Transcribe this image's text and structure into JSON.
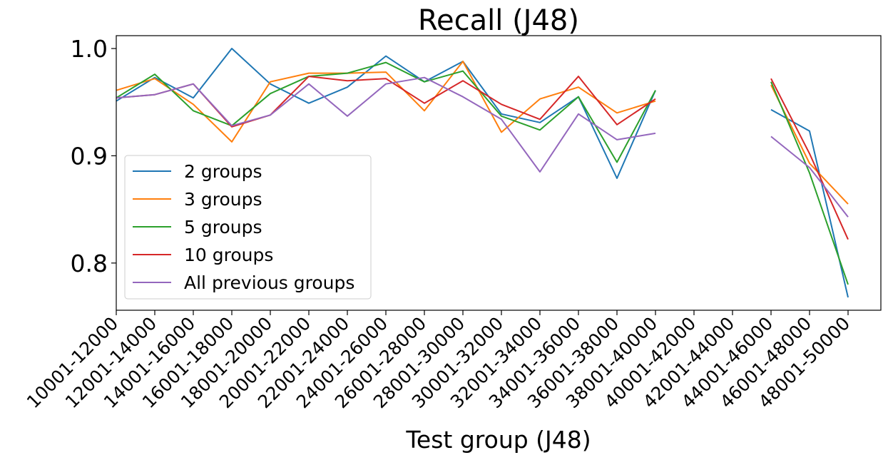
{
  "chart_data": {
    "type": "line",
    "title": "Recall (J48)",
    "xlabel": "Test group (J48)",
    "ylabel": "",
    "ylim": [
      0.756,
      1.012
    ],
    "yticks": [
      0.8,
      0.9,
      1.0
    ],
    "ytick_labels": [
      "0.8",
      "0.9",
      "1.0"
    ],
    "grid": false,
    "legend_position": "lower-left",
    "categories": [
      "10001-12000",
      "12001-14000",
      "14001-16000",
      "16001-18000",
      "18001-20000",
      "20001-22000",
      "22001-24000",
      "24001-26000",
      "26001-28000",
      "28001-30000",
      "30001-32000",
      "32001-34000",
      "34001-36000",
      "36001-38000",
      "38001-40000",
      "40001-42000",
      "42001-44000",
      "44001-46000",
      "46001-48000",
      "48001-50000"
    ],
    "series": [
      {
        "name": "2 groups",
        "color": "#1f77b4",
        "values": [
          0.951,
          0.973,
          0.954,
          1.0,
          0.967,
          0.949,
          0.964,
          0.993,
          0.969,
          0.988,
          0.939,
          0.931,
          0.955,
          0.879,
          0.961,
          null,
          null,
          0.943,
          0.923,
          0.768
        ]
      },
      {
        "name": "3 groups",
        "color": "#ff7f0e",
        "values": [
          0.961,
          0.972,
          0.948,
          0.913,
          0.969,
          0.977,
          0.977,
          0.978,
          0.942,
          0.988,
          0.922,
          0.953,
          0.964,
          0.94,
          0.951,
          null,
          null,
          0.966,
          0.893,
          0.855
        ]
      },
      {
        "name": "5 groups",
        "color": "#2ca02c",
        "values": [
          0.954,
          0.976,
          0.942,
          0.928,
          0.958,
          0.974,
          0.977,
          0.987,
          0.969,
          0.979,
          0.937,
          0.924,
          0.955,
          0.894,
          0.961,
          null,
          null,
          0.969,
          0.884,
          0.78
        ]
      },
      {
        "name": "10 groups",
        "color": "#d62728",
        "values": [
          0.954,
          0.957,
          0.967,
          0.927,
          0.938,
          0.974,
          0.97,
          0.972,
          0.949,
          0.97,
          0.948,
          0.934,
          0.974,
          0.929,
          0.953,
          null,
          null,
          0.972,
          0.902,
          0.822
        ]
      },
      {
        "name": "All previous groups",
        "color": "#9467bd",
        "values": [
          0.954,
          0.957,
          0.967,
          0.928,
          0.938,
          0.967,
          0.937,
          0.967,
          0.973,
          0.955,
          0.934,
          0.885,
          0.939,
          0.915,
          0.921,
          null,
          null,
          0.918,
          0.889,
          0.843
        ]
      }
    ]
  }
}
